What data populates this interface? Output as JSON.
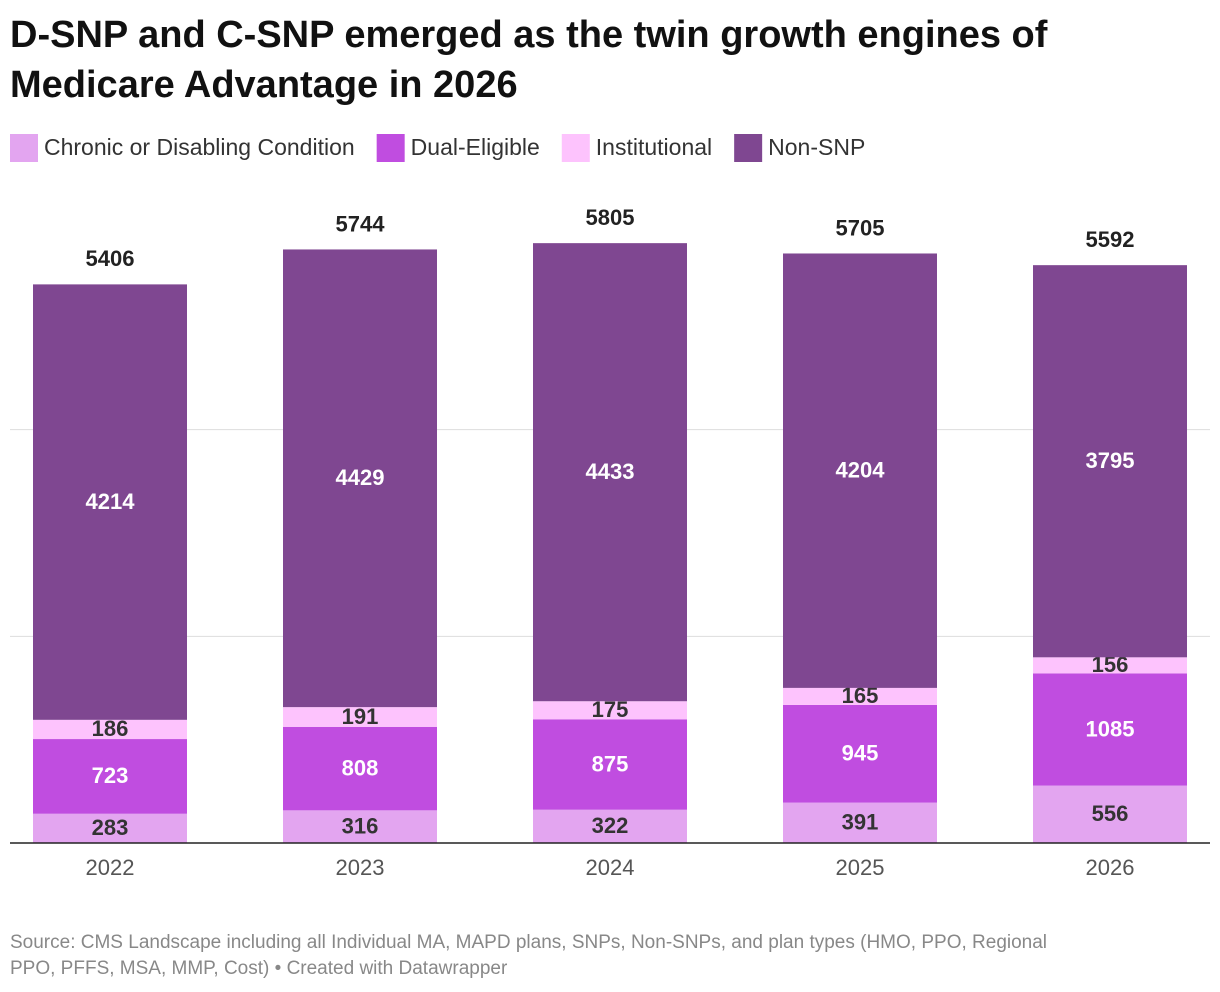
{
  "chart_data": {
    "type": "stacked_bar",
    "title": [
      "D-SNP and C-SNP emerged as the twin growth engines of",
      "Medicare Advantage in 2026"
    ],
    "categories": [
      "2022",
      "2023",
      "2024",
      "2025",
      "2026"
    ],
    "series": [
      {
        "name": "Chronic or Disabling Condition",
        "color": "#e3a5f0",
        "label_color": "#333333",
        "values": [
          283,
          316,
          322,
          391,
          556
        ]
      },
      {
        "name": "Dual-Eligible",
        "color": "#c04de0",
        "label_color": "#ffffff",
        "values": [
          723,
          808,
          875,
          945,
          1085
        ]
      },
      {
        "name": "Institutional",
        "color": "#fdc3fd",
        "label_color": "#333333",
        "values": [
          186,
          191,
          175,
          165,
          156
        ]
      },
      {
        "name": "Non-SNP",
        "color": "#7f4791",
        "label_color": "#ffffff",
        "values": [
          4214,
          4429,
          4433,
          4204,
          3795
        ]
      }
    ],
    "totals": [
      5406,
      5744,
      5805,
      5705,
      5592
    ],
    "ylim": [
      0,
      6000
    ],
    "gridlines": [
      2000,
      4000
    ],
    "grid": true,
    "source": [
      "Source: CMS Landscape including all Individual MA, MAPD plans, SNPs, Non-SNPs, and plan types (HMO, PPO, Regional",
      "PPO, PFFS, MSA, MMP, Cost) • Created with Datawrapper"
    ]
  }
}
